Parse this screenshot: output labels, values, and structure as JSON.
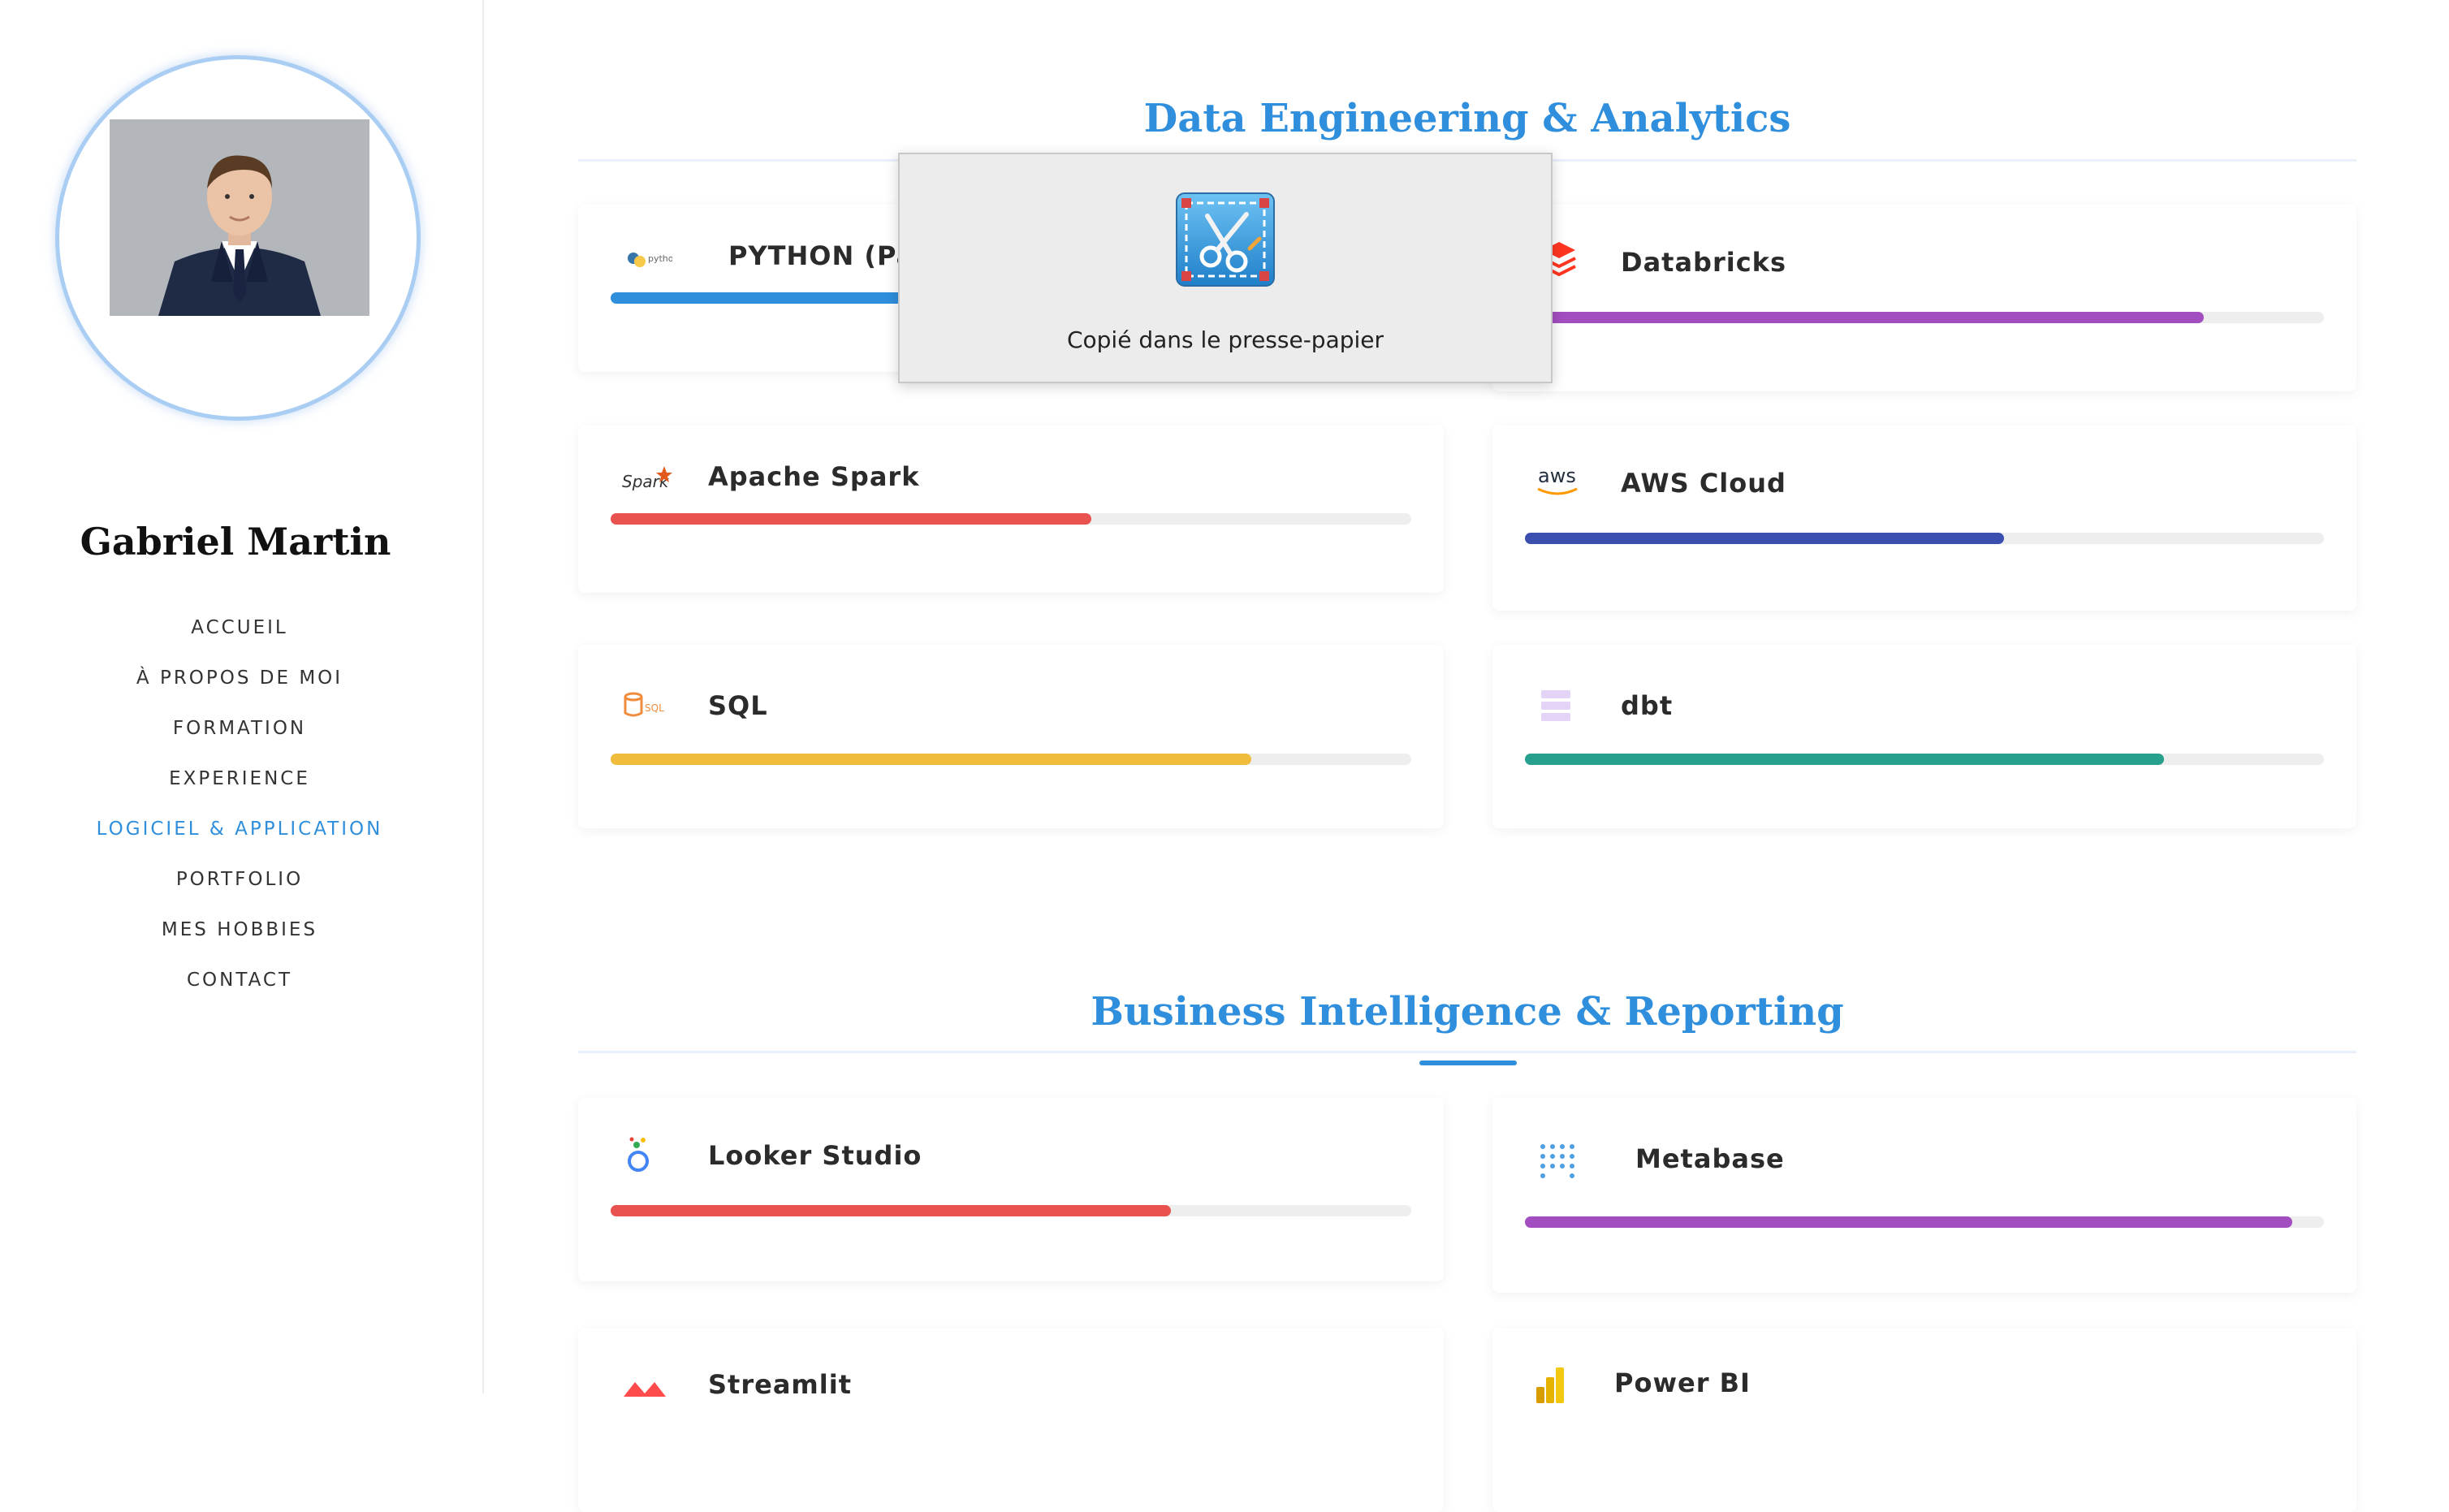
{
  "sidebar": {
    "name": "Gabriel Martin",
    "nav": [
      {
        "label": "ACCUEIL",
        "active": false
      },
      {
        "label": "À PROPOS DE MOI",
        "active": false
      },
      {
        "label": "FORMATION",
        "active": false
      },
      {
        "label": "EXPERIENCE",
        "active": false
      },
      {
        "label": "LOGICIEL & APPLICATION",
        "active": true
      },
      {
        "label": "PORTFOLIO",
        "active": false
      },
      {
        "label": "MES HOBBIES",
        "active": false
      },
      {
        "label": "CONTACT",
        "active": false
      }
    ]
  },
  "sections": [
    {
      "title": "Data Engineering & Analytics",
      "skills": [
        {
          "name": "PYTHON (Pandas)",
          "icon": "python-logo",
          "level": 0.72,
          "color": "#2f8fdc"
        },
        {
          "name": "Databricks",
          "icon": "databricks-logo",
          "level": 0.85,
          "color": "#a34ec0"
        },
        {
          "name": "Apache Spark",
          "icon": "spark-logo",
          "level": 0.6,
          "color": "#e8534f"
        },
        {
          "name": "AWS Cloud",
          "icon": "aws-logo",
          "level": 0.6,
          "color": "#3b4fb0"
        },
        {
          "name": "SQL",
          "icon": "sql-logo",
          "level": 0.8,
          "color": "#f0bc3c"
        },
        {
          "name": "dbt",
          "icon": "dbt-logo",
          "level": 0.8,
          "color": "#27a08d"
        }
      ]
    },
    {
      "title": "Business Intelligence & Reporting",
      "skills": [
        {
          "name": "Looker Studio",
          "icon": "looker-logo",
          "level": 0.7,
          "color": "#e8534f"
        },
        {
          "name": "Metabase",
          "icon": "metabase-logo",
          "level": 0.96,
          "color": "#a34ec0"
        },
        {
          "name": "Streamlit",
          "icon": "streamlit-logo",
          "level": 0.0,
          "color": "#e8534f"
        },
        {
          "name": "Power BI",
          "icon": "powerbi-logo",
          "level": 0.0,
          "color": "#f0bc3c"
        }
      ]
    }
  ],
  "popup": {
    "message": "Copié dans le presse-papier",
    "icon": "screenshot-scissors-icon"
  }
}
